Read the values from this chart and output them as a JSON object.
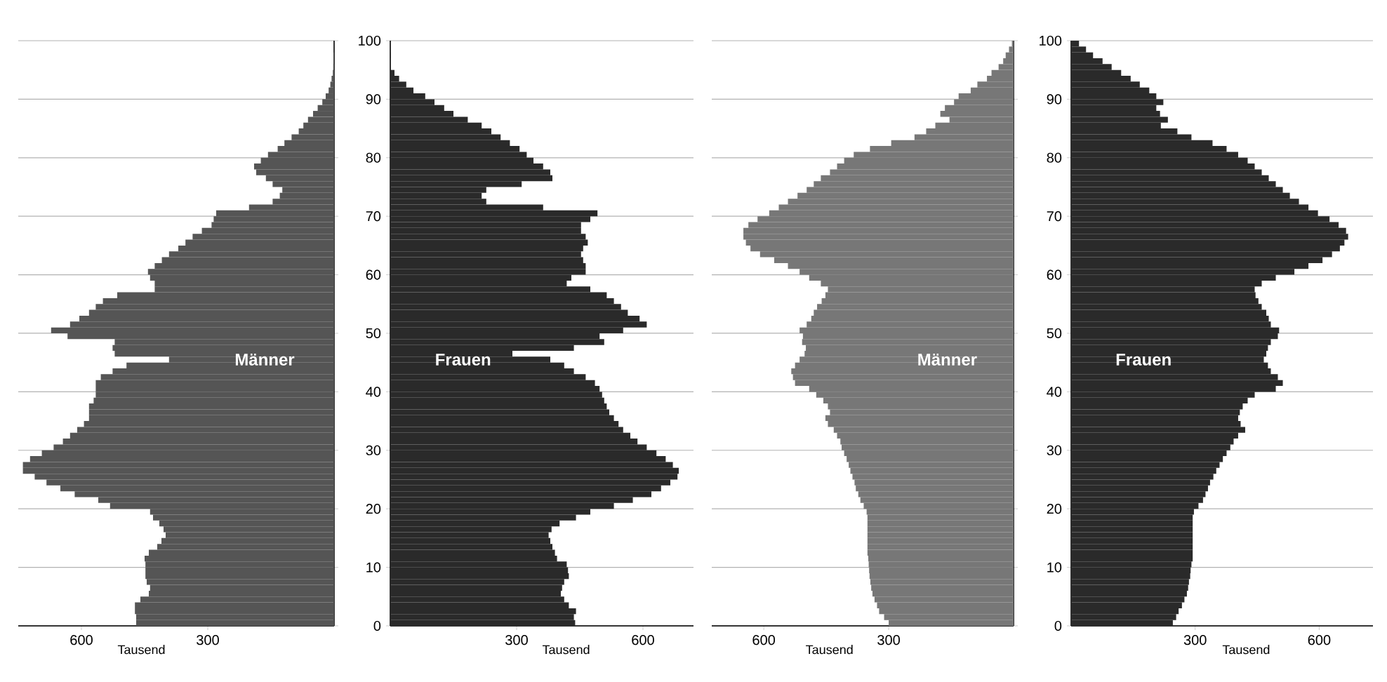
{
  "chart_data": [
    {
      "type": "bar",
      "orientation": "horizontal",
      "xlabel": "Tausend",
      "xlim": [
        750,
        0
      ],
      "xticks": [
        600,
        300
      ],
      "ylim": [
        0,
        100
      ],
      "yticks": [
        0,
        10,
        20,
        30,
        40,
        50,
        60,
        70,
        80,
        90,
        100
      ],
      "grid": "y",
      "tick_labels": "x",
      "x": [
        0,
        1,
        2,
        3,
        4,
        5,
        6,
        7,
        8,
        9,
        10,
        11,
        12,
        13,
        14,
        15,
        16,
        17,
        18,
        19,
        20,
        21,
        22,
        23,
        24,
        25,
        26,
        27,
        28,
        29,
        30,
        31,
        32,
        33,
        34,
        35,
        36,
        37,
        38,
        39,
        40,
        41,
        42,
        43,
        44,
        45,
        46,
        47,
        48,
        49,
        50,
        51,
        52,
        53,
        54,
        55,
        56,
        57,
        58,
        59,
        60,
        61,
        62,
        63,
        64,
        65,
        66,
        67,
        68,
        69,
        70,
        71,
        72,
        73,
        74,
        75,
        76,
        77,
        78,
        79,
        80,
        81,
        82,
        83,
        84,
        85,
        86,
        87,
        88,
        89,
        90,
        91,
        92,
        93,
        94,
        95,
        96,
        97,
        98,
        99
      ],
      "series": [
        {
          "name": "Männer",
          "color": "#555555",
          "values": [
            470,
            470,
            473,
            473,
            460,
            440,
            437,
            445,
            448,
            448,
            448,
            450,
            440,
            420,
            410,
            400,
            405,
            415,
            430,
            437,
            532,
            560,
            616,
            650,
            683,
            711,
            739,
            739,
            722,
            694,
            666,
            644,
            627,
            610,
            594,
            582,
            582,
            582,
            571,
            566,
            566,
            566,
            554,
            526,
            493,
            392,
            521,
            526,
            521,
            633,
            672,
            627,
            605,
            582,
            566,
            549,
            515,
            426,
            426,
            437,
            442,
            426,
            409,
            392,
            370,
            353,
            336,
            314,
            291,
            286,
            280,
            202,
            146,
            129,
            123,
            146,
            162,
            185,
            190,
            174,
            157,
            134,
            118,
            101,
            84,
            73,
            62,
            50,
            39,
            28,
            20,
            13,
            9,
            6,
            3,
            2,
            1,
            1,
            0,
            0
          ]
        }
      ]
    },
    {
      "type": "bar",
      "orientation": "horizontal",
      "xlabel": "Tausend",
      "xlim": [
        0,
        720
      ],
      "xticks": [
        300,
        600
      ],
      "ylim": [
        0,
        100
      ],
      "yticks": [
        0,
        10,
        20,
        30,
        40,
        50,
        60,
        70,
        80,
        90,
        100
      ],
      "grid": "y",
      "x": [
        0,
        1,
        2,
        3,
        4,
        5,
        6,
        7,
        8,
        9,
        10,
        11,
        12,
        13,
        14,
        15,
        16,
        17,
        18,
        19,
        20,
        21,
        22,
        23,
        24,
        25,
        26,
        27,
        28,
        29,
        30,
        31,
        32,
        33,
        34,
        35,
        36,
        37,
        38,
        39,
        40,
        41,
        42,
        43,
        44,
        45,
        46,
        47,
        48,
        49,
        50,
        51,
        52,
        53,
        54,
        55,
        56,
        57,
        58,
        59,
        60,
        61,
        62,
        63,
        64,
        65,
        66,
        67,
        68,
        69,
        70,
        71,
        72,
        73,
        74,
        75,
        76,
        77,
        78,
        79,
        80,
        81,
        82,
        83,
        84,
        85,
        86,
        87,
        88,
        89,
        90,
        91,
        92,
        93,
        94,
        95,
        96,
        97,
        98,
        99
      ],
      "series": [
        {
          "name": "Frauen",
          "color": "#2a2a2a",
          "values": [
            439,
            436,
            441,
            424,
            413,
            405,
            408,
            413,
            424,
            422,
            419,
            396,
            391,
            385,
            380,
            376,
            383,
            402,
            441,
            475,
            531,
            576,
            620,
            643,
            665,
            682,
            685,
            671,
            654,
            632,
            609,
            587,
            570,
            553,
            542,
            531,
            520,
            514,
            508,
            503,
            497,
            486,
            464,
            436,
            413,
            380,
            290,
            436,
            508,
            497,
            553,
            609,
            592,
            564,
            548,
            531,
            514,
            475,
            419,
            430,
            464,
            464,
            458,
            453,
            458,
            469,
            464,
            453,
            453,
            475,
            492,
            363,
            228,
            217,
            228,
            312,
            385,
            380,
            363,
            340,
            324,
            307,
            284,
            262,
            240,
            217,
            184,
            150,
            128,
            105,
            83,
            55,
            38,
            21,
            10,
            null,
            null,
            1,
            0,
            0
          ]
        }
      ]
    },
    {
      "type": "bar",
      "orientation": "horizontal",
      "xlabel": "Tausend",
      "xlim": [
        725,
        0
      ],
      "xticks": [
        600,
        300
      ],
      "ylim": [
        0,
        100
      ],
      "yticks": [
        0,
        10,
        20,
        30,
        40,
        50,
        60,
        70,
        80,
        90,
        100
      ],
      "grid": "y",
      "tick_labels": "x",
      "x": [
        0,
        1,
        2,
        3,
        4,
        5,
        6,
        7,
        8,
        9,
        10,
        11,
        12,
        13,
        14,
        15,
        16,
        17,
        18,
        19,
        20,
        21,
        22,
        23,
        24,
        25,
        26,
        27,
        28,
        29,
        30,
        31,
        32,
        33,
        34,
        35,
        36,
        37,
        38,
        39,
        40,
        41,
        42,
        43,
        44,
        45,
        46,
        47,
        48,
        49,
        50,
        51,
        52,
        53,
        54,
        55,
        56,
        57,
        58,
        59,
        60,
        61,
        62,
        63,
        64,
        65,
        66,
        67,
        68,
        69,
        70,
        71,
        72,
        73,
        74,
        75,
        76,
        77,
        78,
        79,
        80,
        81,
        82,
        83,
        84,
        85,
        86,
        87,
        88,
        89,
        90,
        91,
        92,
        93,
        94,
        95,
        96,
        97,
        98,
        99
      ],
      "series": [
        {
          "name": "Männer",
          "color": "#777777",
          "values": [
            300,
            311,
            323,
            328,
            334,
            339,
            342,
            344,
            346,
            347,
            348,
            349,
            351,
            351,
            351,
            351,
            351,
            351,
            351,
            353,
            360,
            368,
            373,
            379,
            382,
            387,
            392,
            396,
            401,
            407,
            413,
            416,
            424,
            432,
            446,
            452,
            441,
            446,
            457,
            474,
            491,
            525,
            530,
            534,
            525,
            514,
            502,
            499,
            508,
            506,
            514,
            497,
            486,
            480,
            472,
            461,
            452,
            446,
            463,
            491,
            514,
            542,
            575,
            609,
            632,
            643,
            649,
            649,
            637,
            615,
            587,
            564,
            542,
            519,
            497,
            480,
            463,
            441,
            424,
            407,
            384,
            345,
            294,
            238,
            210,
            188,
            154,
            176,
            165,
            143,
            132,
            103,
            87,
            64,
            53,
            36,
            25,
            19,
            11,
            4
          ]
        }
      ]
    },
    {
      "type": "bar",
      "orientation": "horizontal",
      "xlabel": "Tausend",
      "xlim": [
        0,
        730
      ],
      "xticks": [
        300,
        600
      ],
      "ylim": [
        0,
        100
      ],
      "yticks": [
        0,
        10,
        20,
        30,
        40,
        50,
        60,
        70,
        80,
        90,
        100
      ],
      "grid": "y",
      "x": [
        0,
        1,
        2,
        3,
        4,
        5,
        6,
        7,
        8,
        9,
        10,
        11,
        12,
        13,
        14,
        15,
        16,
        17,
        18,
        19,
        20,
        21,
        22,
        23,
        24,
        25,
        26,
        27,
        28,
        29,
        30,
        31,
        32,
        33,
        34,
        35,
        36,
        37,
        38,
        39,
        40,
        41,
        42,
        43,
        44,
        45,
        46,
        47,
        48,
        49,
        50,
        51,
        52,
        53,
        54,
        55,
        56,
        57,
        58,
        59,
        60,
        61,
        62,
        63,
        64,
        65,
        66,
        67,
        68,
        69,
        70,
        71,
        72,
        73,
        74,
        75,
        76,
        77,
        78,
        79,
        80,
        81,
        82,
        83,
        84,
        85,
        86,
        87,
        88,
        89,
        90,
        91,
        92,
        93,
        94,
        95,
        96,
        97,
        98,
        99
      ],
      "series": [
        {
          "name": "Frauen",
          "color": "#2a2a2a",
          "values": [
            246,
            254,
            260,
            268,
            274,
            280,
            283,
            285,
            288,
            289,
            291,
            294,
            294,
            294,
            294,
            294,
            294,
            294,
            294,
            297,
            308,
            319,
            325,
            331,
            336,
            344,
            351,
            359,
            367,
            376,
            385,
            393,
            404,
            421,
            410,
            404,
            408,
            415,
            427,
            444,
            495,
            512,
            500,
            483,
            476,
            466,
            472,
            476,
            483,
            500,
            503,
            483,
            478,
            472,
            461,
            453,
            446,
            444,
            461,
            495,
            540,
            574,
            608,
            631,
            650,
            661,
            670,
            665,
            647,
            625,
            597,
            574,
            551,
            529,
            512,
            495,
            478,
            461,
            444,
            427,
            404,
            376,
            342,
            291,
            257,
            217,
            234,
            215,
            206,
            223,
            206,
            189,
            166,
            144,
            121,
            98,
            76,
            53,
            36,
            19
          ]
        }
      ]
    }
  ]
}
